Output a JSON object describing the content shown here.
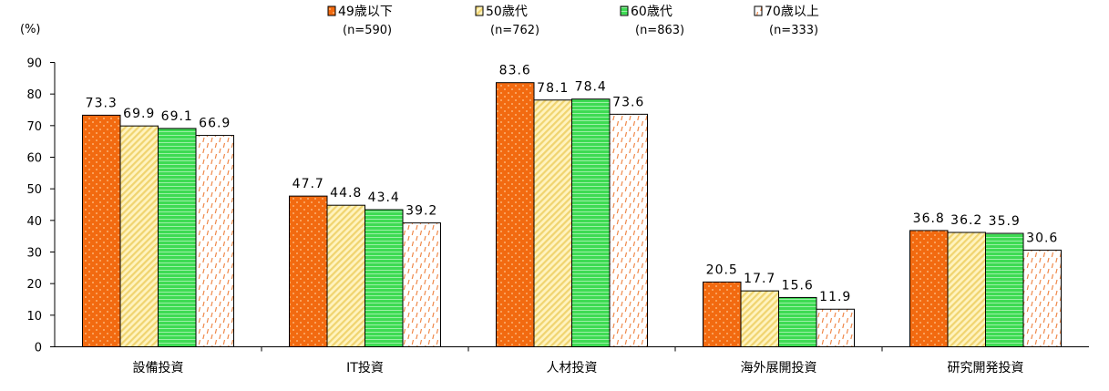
{
  "chart_data": {
    "type": "bar",
    "y_unit_label": "(%)",
    "ylim": [
      0,
      90
    ],
    "y_ticks": [
      0,
      10,
      20,
      30,
      40,
      50,
      60,
      70,
      80,
      90
    ],
    "grid": false,
    "legend_position": "top",
    "categories": [
      "設備投資",
      "IT投資",
      "人材投資",
      "海外展開投資",
      "研究開発投資"
    ],
    "series": [
      {
        "name": "49歳以下",
        "n_label": "(n=590)",
        "color": "#F26A10",
        "pattern": "dots",
        "values": [
          73.3,
          47.7,
          83.6,
          20.5,
          36.8
        ],
        "value_labels": [
          "73.3",
          "47.7",
          "83.6",
          "20.5",
          "36.8"
        ]
      },
      {
        "name": "50歳代",
        "n_label": "(n=762)",
        "color": "#FFE999",
        "pattern": "diagonal",
        "values": [
          69.9,
          44.8,
          78.1,
          17.7,
          36.2
        ],
        "value_labels": [
          "69.9",
          "44.8",
          "78.1",
          "17.7",
          "36.2"
        ]
      },
      {
        "name": "60歳代",
        "n_label": "(n=863)",
        "color": "#3EDB53",
        "pattern": "horizontal",
        "values": [
          69.1,
          43.4,
          78.4,
          15.6,
          35.9
        ],
        "value_labels": [
          "69.1",
          "43.4",
          "78.4",
          "15.6",
          "35.9"
        ]
      },
      {
        "name": "70歳以上",
        "n_label": "(n=333)",
        "color": "#FFFFFF",
        "pattern": "dashes",
        "values": [
          66.9,
          39.2,
          73.6,
          11.9,
          30.6
        ],
        "value_labels": [
          "66.9",
          "39.2",
          "73.6",
          "11.9",
          "30.6"
        ]
      }
    ]
  }
}
